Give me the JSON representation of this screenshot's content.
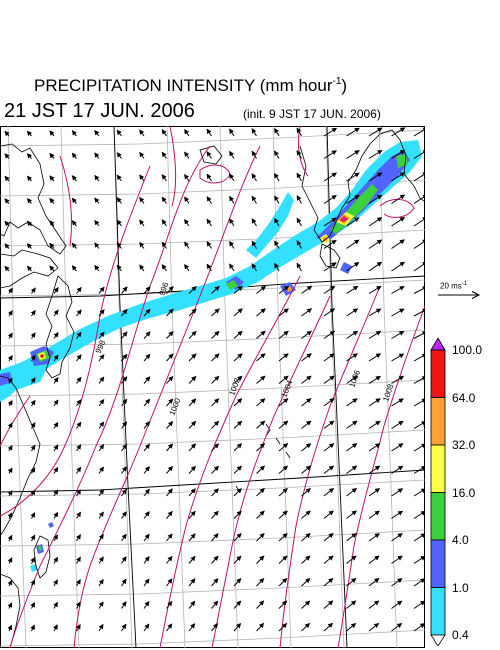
{
  "title": {
    "main": "PRECIPITATION INTENSITY (mm hour",
    "main_exp": "-1",
    "main_close": ")",
    "valid_time": "21 JST 17 JUN. 2006",
    "init_time": "(init. 9 JST 17 JUN. 2006)"
  },
  "reference_vector": {
    "label": "20 ms",
    "label_exp": "-1"
  },
  "colorbar": {
    "levels": [
      "0.4",
      "1.0",
      "4.0",
      "16.0",
      "32.0",
      "64.0",
      "100.0"
    ],
    "colors": [
      "#33e0ff",
      "#5064ff",
      "#3cd03c",
      "#ffff46",
      "#ffa032",
      "#f01414",
      "#b428ff"
    ]
  },
  "isobars": [
    "996",
    "998",
    "1000",
    "1002",
    "1004",
    "1006",
    "1008"
  ],
  "map_colors": {
    "isobar": "#c0106e",
    "grid": "#b4b4b4",
    "coast": "#000000",
    "vector": "#000000"
  }
}
